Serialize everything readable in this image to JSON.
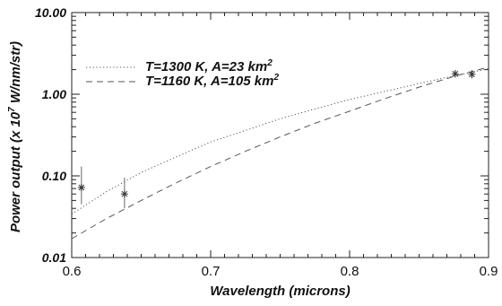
{
  "chart_data": {
    "type": "line",
    "title": "",
    "xlabel": "Wavelength (microns)",
    "ylabel_prefix": "Power output (x 10",
    "ylabel_exp": "7",
    "ylabel_suffix": " W/nm/str)",
    "xlim": [
      0.6,
      0.9
    ],
    "ylim": [
      0.01,
      10.0
    ],
    "yscale": "log",
    "grid": false,
    "legend_position": "upper-left",
    "x_ticks": [
      0.6,
      0.7,
      0.8,
      0.9
    ],
    "x_tick_labels": [
      "0.6",
      "0.7",
      "0.8",
      "0.9"
    ],
    "y_ticks": [
      0.01,
      0.1,
      1.0,
      10.0
    ],
    "y_tick_labels": [
      "0.01",
      "0.10",
      "1.00",
      "10.00"
    ],
    "series": [
      {
        "name": "T=1300 K, A=23 km",
        "name_sup": "2",
        "style": "dotted",
        "x": [
          0.6,
          0.625,
          0.65,
          0.675,
          0.7,
          0.725,
          0.75,
          0.775,
          0.8,
          0.825,
          0.85,
          0.875,
          0.9
        ],
        "y": [
          0.034,
          0.064,
          0.11,
          0.17,
          0.26,
          0.36,
          0.5,
          0.66,
          0.86,
          1.08,
          1.35,
          1.68,
          2.05
        ]
      },
      {
        "name": "T=1160 K, A=105 km",
        "name_sup": "2",
        "style": "dashed",
        "x": [
          0.6,
          0.625,
          0.65,
          0.675,
          0.7,
          0.725,
          0.75,
          0.775,
          0.8,
          0.825,
          0.85,
          0.875,
          0.9
        ],
        "y": [
          0.017,
          0.03,
          0.05,
          0.082,
          0.13,
          0.2,
          0.3,
          0.44,
          0.62,
          0.88,
          1.22,
          1.65,
          2.15
        ]
      },
      {
        "name": "",
        "style": "points",
        "x": [
          0.607,
          0.638,
          0.876,
          0.888
        ],
        "y": [
          0.072,
          0.06,
          1.78,
          1.75
        ],
        "y_err_low": [
          0.045,
          0.04,
          1.6,
          1.55
        ],
        "y_err_high": [
          0.13,
          0.095,
          1.98,
          1.98
        ]
      }
    ]
  }
}
